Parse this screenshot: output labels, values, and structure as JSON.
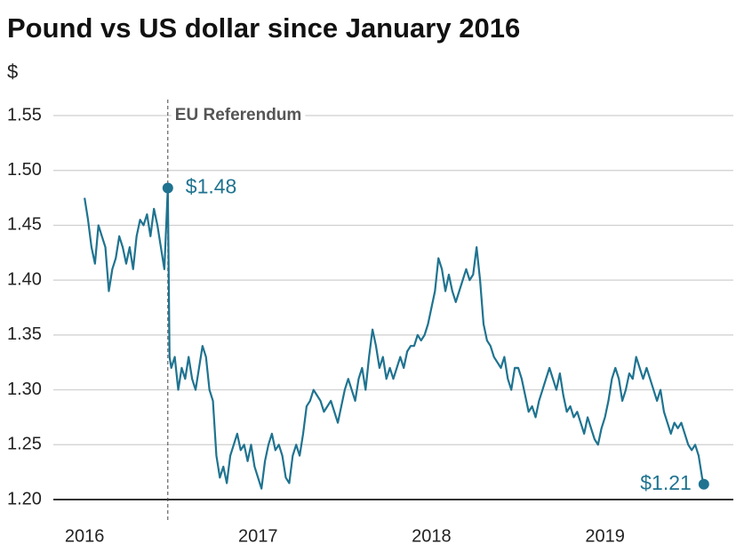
{
  "chart_data": {
    "type": "line",
    "title": "Pound vs US dollar since January 2016",
    "y_label": "$",
    "color": "#1f7390",
    "xlim": [
      2015.82,
      2019.74
    ],
    "xticks": [
      2016,
      2017,
      2018,
      2019
    ],
    "ylim": [
      1.2,
      1.55
    ],
    "yticks": [
      {
        "value": 1.2,
        "label": "1.20"
      },
      1.25,
      {
        "value": 1.3,
        "label": "1.30"
      },
      1.35,
      {
        "value": 1.4,
        "label": "1.40"
      },
      1.45,
      {
        "value": 1.5,
        "label": "1.50"
      },
      1.55
    ],
    "grid": true,
    "reference_line": {
      "x": 2016.48,
      "label": "EU Referendum"
    },
    "points": [
      {
        "x": 2016.48,
        "y": 1.484,
        "label": "$1.48"
      },
      {
        "x": 2019.57,
        "y": 1.214,
        "label": "$1.21"
      }
    ],
    "x": [
      2016,
      2016.02,
      2016.04,
      2016.06,
      2016.08,
      2016.1,
      2016.12,
      2016.14,
      2016.16,
      2016.18,
      2016.2,
      2016.22,
      2016.24,
      2016.26,
      2016.28,
      2016.3,
      2016.32,
      2016.34,
      2016.36,
      2016.38,
      2016.4,
      2016.42,
      2016.44,
      2016.46,
      2016.48,
      2016.49,
      2016.5,
      2016.52,
      2016.54,
      2016.56,
      2016.58,
      2016.6,
      2016.62,
      2016.64,
      2016.66,
      2016.68,
      2016.7,
      2016.72,
      2016.74,
      2016.76,
      2016.78,
      2016.8,
      2016.82,
      2016.84,
      2016.86,
      2016.88,
      2016.9,
      2016.92,
      2016.94,
      2016.96,
      2016.98,
      2017,
      2017.02,
      2017.04,
      2017.06,
      2017.08,
      2017.1,
      2017.12,
      2017.14,
      2017.16,
      2017.18,
      2017.2,
      2017.22,
      2017.24,
      2017.26,
      2017.28,
      2017.3,
      2017.32,
      2017.34,
      2017.36,
      2017.38,
      2017.4,
      2017.42,
      2017.44,
      2017.46,
      2017.48,
      2017.5,
      2017.52,
      2017.54,
      2017.56,
      2017.58,
      2017.6,
      2017.62,
      2017.64,
      2017.66,
      2017.68,
      2017.7,
      2017.72,
      2017.74,
      2017.76,
      2017.78,
      2017.8,
      2017.82,
      2017.84,
      2017.86,
      2017.88,
      2017.9,
      2017.92,
      2017.94,
      2017.96,
      2017.98,
      2018,
      2018.02,
      2018.04,
      2018.06,
      2018.08,
      2018.1,
      2018.12,
      2018.14,
      2018.16,
      2018.18,
      2018.2,
      2018.22,
      2018.24,
      2018.26,
      2018.28,
      2018.3,
      2018.32,
      2018.34,
      2018.36,
      2018.38,
      2018.4,
      2018.42,
      2018.44,
      2018.46,
      2018.48,
      2018.5,
      2018.52,
      2018.54,
      2018.56,
      2018.58,
      2018.6,
      2018.62,
      2018.64,
      2018.66,
      2018.68,
      2018.7,
      2018.72,
      2018.74,
      2018.76,
      2018.78,
      2018.8,
      2018.82,
      2018.84,
      2018.86,
      2018.88,
      2018.9,
      2018.92,
      2018.94,
      2018.96,
      2018.98,
      2019,
      2019.02,
      2019.04,
      2019.06,
      2019.08,
      2019.1,
      2019.12,
      2019.14,
      2019.16,
      2019.18,
      2019.2,
      2019.22,
      2019.24,
      2019.26,
      2019.28,
      2019.3,
      2019.32,
      2019.34,
      2019.36,
      2019.38,
      2019.4,
      2019.42,
      2019.44,
      2019.46,
      2019.48,
      2019.5,
      2019.52,
      2019.54,
      2019.56,
      2019.57
    ],
    "values": [
      1.475,
      1.455,
      1.43,
      1.415,
      1.45,
      1.44,
      1.43,
      1.39,
      1.41,
      1.42,
      1.44,
      1.43,
      1.415,
      1.43,
      1.41,
      1.44,
      1.455,
      1.45,
      1.46,
      1.44,
      1.465,
      1.45,
      1.43,
      1.41,
      1.484,
      1.33,
      1.32,
      1.33,
      1.3,
      1.32,
      1.31,
      1.33,
      1.31,
      1.3,
      1.32,
      1.34,
      1.33,
      1.3,
      1.29,
      1.24,
      1.22,
      1.23,
      1.215,
      1.24,
      1.25,
      1.26,
      1.245,
      1.25,
      1.235,
      1.25,
      1.23,
      1.22,
      1.21,
      1.235,
      1.25,
      1.26,
      1.245,
      1.25,
      1.24,
      1.22,
      1.215,
      1.24,
      1.25,
      1.24,
      1.26,
      1.285,
      1.29,
      1.3,
      1.295,
      1.29,
      1.28,
      1.285,
      1.29,
      1.28,
      1.27,
      1.285,
      1.3,
      1.31,
      1.3,
      1.29,
      1.31,
      1.32,
      1.3,
      1.33,
      1.355,
      1.34,
      1.32,
      1.33,
      1.31,
      1.32,
      1.31,
      1.32,
      1.33,
      1.32,
      1.335,
      1.34,
      1.34,
      1.35,
      1.345,
      1.35,
      1.36,
      1.375,
      1.39,
      1.42,
      1.41,
      1.39,
      1.405,
      1.39,
      1.38,
      1.39,
      1.4,
      1.41,
      1.4,
      1.405,
      1.43,
      1.4,
      1.36,
      1.345,
      1.34,
      1.33,
      1.325,
      1.32,
      1.33,
      1.31,
      1.3,
      1.32,
      1.32,
      1.31,
      1.295,
      1.28,
      1.285,
      1.275,
      1.29,
      1.3,
      1.31,
      1.32,
      1.31,
      1.3,
      1.315,
      1.295,
      1.28,
      1.285,
      1.275,
      1.28,
      1.27,
      1.26,
      1.275,
      1.265,
      1.255,
      1.25,
      1.265,
      1.275,
      1.29,
      1.31,
      1.32,
      1.31,
      1.29,
      1.3,
      1.315,
      1.31,
      1.33,
      1.32,
      1.31,
      1.32,
      1.31,
      1.3,
      1.29,
      1.3,
      1.28,
      1.27,
      1.26,
      1.27,
      1.265,
      1.27,
      1.26,
      1.25,
      1.245,
      1.25,
      1.24,
      1.22,
      1.214
    ]
  }
}
